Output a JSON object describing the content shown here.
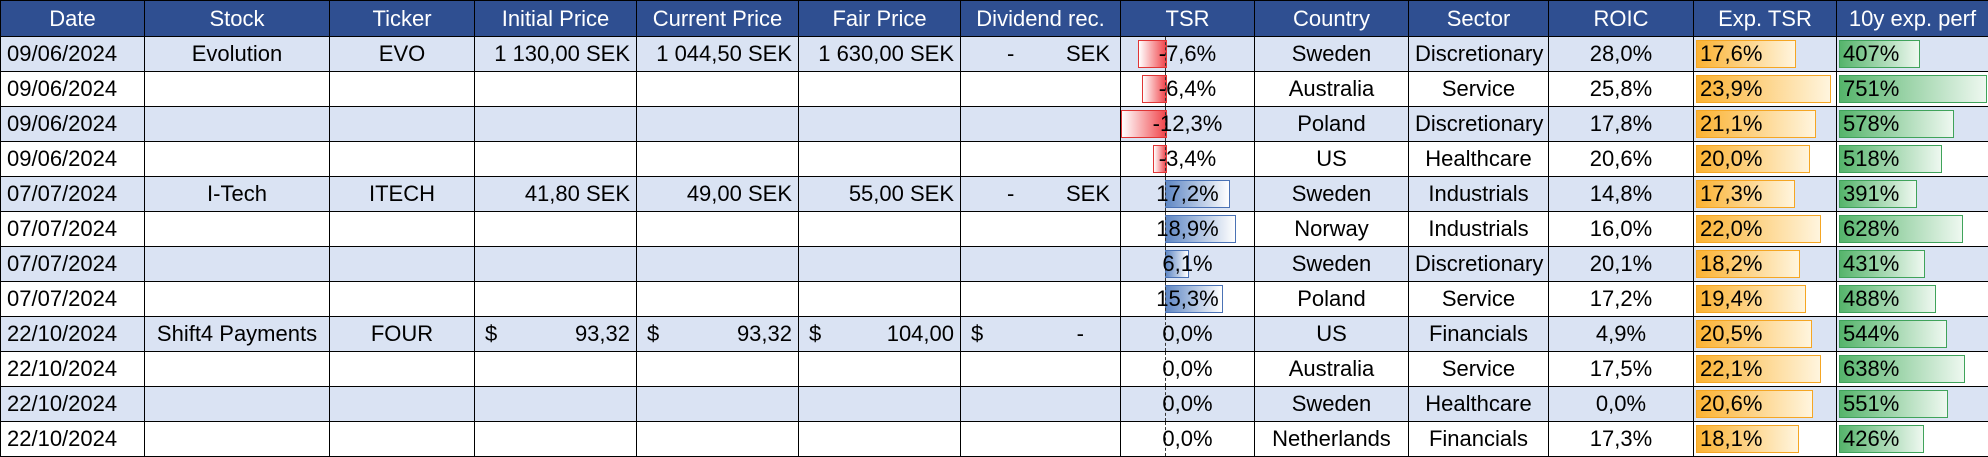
{
  "headers": [
    "Date",
    "Stock",
    "Ticker",
    "Initial Price",
    "Current Price",
    "Fair Price",
    "Dividend rec.",
    "TSR",
    "Country",
    "Sector",
    "ROIC",
    "Exp. TSR",
    "10y exp. perf"
  ],
  "rows": [
    {
      "date": "09/06/2024",
      "stock": "Evolution",
      "ticker": "EVO",
      "initial": "1 130,00 SEK",
      "current": "1 044,50 SEK",
      "fair": "1 630,00 SEK",
      "div_value": "-",
      "div_cur": "SEK",
      "tsr": "-7,6%",
      "tsr_value": -7.6,
      "country": "Sweden",
      "sector": "Discretionary",
      "roic": "28,0%",
      "exp_tsr": "17,6%",
      "exp_tsr_value": 17.6,
      "perf": "407%",
      "perf_value": 407
    },
    {
      "date": "09/06/2024",
      "stock": "",
      "ticker": "",
      "initial": "",
      "current": "",
      "fair": "",
      "div_value": "",
      "div_cur": "",
      "tsr": "-6,4%",
      "tsr_value": -6.4,
      "country": "Australia",
      "sector": "Service",
      "roic": "25,8%",
      "exp_tsr": "23,9%",
      "exp_tsr_value": 23.9,
      "perf": "751%",
      "perf_value": 751
    },
    {
      "date": "09/06/2024",
      "stock": "",
      "ticker": "",
      "initial": "",
      "current": "",
      "fair": "",
      "div_value": "",
      "div_cur": "",
      "tsr": "-12,3%",
      "tsr_value": -12.3,
      "country": "Poland",
      "sector": "Discretionary",
      "roic": "17,8%",
      "exp_tsr": "21,1%",
      "exp_tsr_value": 21.1,
      "perf": "578%",
      "perf_value": 578
    },
    {
      "date": "09/06/2024",
      "stock": "",
      "ticker": "",
      "initial": "",
      "current": "",
      "fair": "",
      "div_value": "",
      "div_cur": "",
      "tsr": "-3,4%",
      "tsr_value": -3.4,
      "country": "US",
      "sector": "Healthcare",
      "roic": "20,6%",
      "exp_tsr": "20,0%",
      "exp_tsr_value": 20.0,
      "perf": "518%",
      "perf_value": 518
    },
    {
      "date": "07/07/2024",
      "stock": "I-Tech",
      "ticker": "ITECH",
      "initial": "41,80 SEK",
      "current": "49,00 SEK",
      "fair": "55,00 SEK",
      "div_value": "-",
      "div_cur": "SEK",
      "tsr": "17,2%",
      "tsr_value": 17.2,
      "country": "Sweden",
      "sector": "Industrials",
      "roic": "14,8%",
      "exp_tsr": "17,3%",
      "exp_tsr_value": 17.3,
      "perf": "391%",
      "perf_value": 391
    },
    {
      "date": "07/07/2024",
      "stock": "",
      "ticker": "",
      "initial": "",
      "current": "",
      "fair": "",
      "div_value": "",
      "div_cur": "",
      "tsr": "18,9%",
      "tsr_value": 18.9,
      "country": "Norway",
      "sector": "Industrials",
      "roic": "16,0%",
      "exp_tsr": "22,0%",
      "exp_tsr_value": 22.0,
      "perf": "628%",
      "perf_value": 628
    },
    {
      "date": "07/07/2024",
      "stock": "",
      "ticker": "",
      "initial": "",
      "current": "",
      "fair": "",
      "div_value": "",
      "div_cur": "",
      "tsr": "6,1%",
      "tsr_value": 6.1,
      "country": "Sweden",
      "sector": "Discretionary",
      "roic": "20,1%",
      "exp_tsr": "18,2%",
      "exp_tsr_value": 18.2,
      "perf": "431%",
      "perf_value": 431
    },
    {
      "date": "07/07/2024",
      "stock": "",
      "ticker": "",
      "initial": "",
      "current": "",
      "fair": "",
      "div_value": "",
      "div_cur": "",
      "tsr": "15,3%",
      "tsr_value": 15.3,
      "country": "Poland",
      "sector": "Service",
      "roic": "17,2%",
      "exp_tsr": "19,4%",
      "exp_tsr_value": 19.4,
      "perf": "488%",
      "perf_value": 488
    },
    {
      "date": "22/10/2024",
      "stock": "Shift4 Payments",
      "ticker": "FOUR",
      "initial_cur": "$",
      "initial": "93,32",
      "current_cur": "$",
      "current": "93,32",
      "fair_cur": "$",
      "fair": "104,00",
      "div_cur_prefix": "$",
      "div_value": "-",
      "div_cur": "",
      "tsr": "0,0%",
      "tsr_value": 0.0,
      "country": "US",
      "sector": "Financials",
      "roic": "4,9%",
      "exp_tsr": "20,5%",
      "exp_tsr_value": 20.5,
      "perf": "544%",
      "perf_value": 544
    },
    {
      "date": "22/10/2024",
      "stock": "",
      "ticker": "",
      "initial": "",
      "current": "",
      "fair": "",
      "div_value": "",
      "div_cur": "",
      "tsr": "0,0%",
      "tsr_value": 0.0,
      "country": "Australia",
      "sector": "Service",
      "roic": "17,5%",
      "exp_tsr": "22,1%",
      "exp_tsr_value": 22.1,
      "perf": "638%",
      "perf_value": 638
    },
    {
      "date": "22/10/2024",
      "stock": "",
      "ticker": "",
      "initial": "",
      "current": "",
      "fair": "",
      "div_value": "",
      "div_cur": "",
      "tsr": "0,0%",
      "tsr_value": 0.0,
      "country": "Sweden",
      "sector": "Healthcare",
      "roic": "0,0%",
      "exp_tsr": "20,6%",
      "exp_tsr_value": 20.6,
      "perf": "551%",
      "perf_value": 551
    },
    {
      "date": "22/10/2024",
      "stock": "",
      "ticker": "",
      "initial": "",
      "current": "",
      "fair": "",
      "div_value": "",
      "div_cur": "",
      "tsr": "0,0%",
      "tsr_value": 0.0,
      "country": "Netherlands",
      "sector": "Financials",
      "roic": "17,3%",
      "exp_tsr": "18,1%",
      "exp_tsr_value": 18.1,
      "perf": "426%",
      "perf_value": 426
    }
  ],
  "colors": {
    "header_bg": "#2f4f91",
    "band_bg": "#dae3f3",
    "tsr_negative": "#f0444a",
    "tsr_positive": "#5f87c4",
    "exp_tsr_bar": "#fbb232",
    "perf_bar": "#55b46b"
  }
}
